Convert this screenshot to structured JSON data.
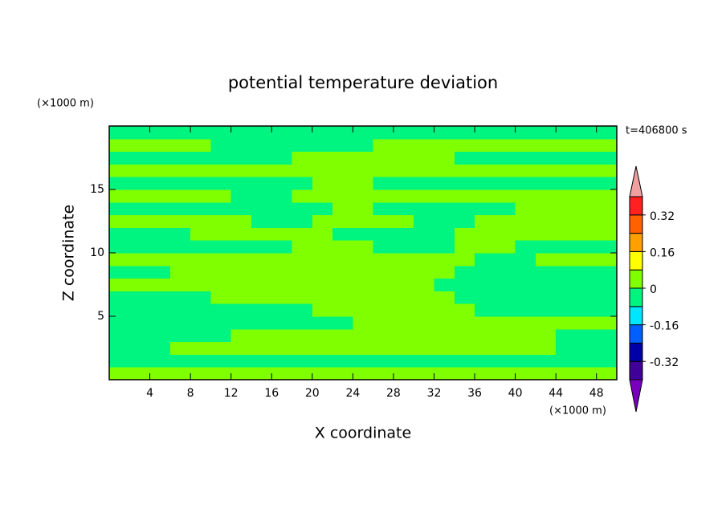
{
  "chart_data": {
    "type": "contourf",
    "title": "potential temperature deviation",
    "xlabel": "X coordinate",
    "ylabel": "Z coordinate",
    "xunit": "(×1000 m)",
    "yunit": "(×1000 m)",
    "annotation": "t=406800 s",
    "xlim": [
      0,
      50
    ],
    "ylim": [
      0,
      20
    ],
    "xticks": [
      4,
      8,
      12,
      16,
      20,
      24,
      28,
      32,
      36,
      40,
      44,
      48
    ],
    "yticks": [
      5,
      10,
      15
    ],
    "x": [
      1,
      3,
      5,
      7,
      9,
      11,
      13,
      15,
      17,
      19,
      21,
      23,
      25,
      27,
      29,
      31,
      33,
      35,
      37,
      39,
      41,
      43,
      45,
      47,
      49
    ],
    "y": [
      0.5,
      1.5,
      2.5,
      3.5,
      4.5,
      5.5,
      6.5,
      7.5,
      8.5,
      9.5,
      10.5,
      11.5,
      12.5,
      13.5,
      14.5,
      15.5,
      16.5,
      17.5,
      18.5,
      19.5
    ],
    "z": [
      [
        0.04,
        0.04,
        0.04,
        0.04,
        0.04,
        0.04,
        0.04,
        0.04,
        0.04,
        0.04,
        0.04,
        0.04,
        0.04,
        0.04,
        0.04,
        0.04,
        0.04,
        0.04,
        0.04,
        0.04,
        0.04,
        0.04,
        0.04,
        0.04,
        0.04
      ],
      [
        -0.04,
        -0.04,
        -0.04,
        -0.04,
        -0.04,
        -0.04,
        -0.04,
        -0.04,
        -0.04,
        -0.04,
        -0.04,
        -0.04,
        -0.04,
        -0.04,
        -0.04,
        -0.04,
        -0.04,
        -0.04,
        -0.04,
        -0.04,
        -0.04,
        -0.04,
        -0.04,
        -0.04,
        -0.04
      ],
      [
        -0.04,
        -0.04,
        -0.04,
        0.04,
        0.04,
        0.04,
        0.04,
        0.04,
        0.04,
        0.04,
        0.04,
        0.04,
        0.04,
        0.04,
        0.04,
        0.04,
        0.04,
        0.04,
        0.04,
        0.04,
        0.04,
        0.04,
        -0.04,
        -0.04,
        -0.04
      ],
      [
        -0.04,
        -0.04,
        -0.04,
        -0.04,
        -0.04,
        -0.04,
        0.04,
        0.04,
        0.04,
        0.04,
        0.04,
        0.04,
        0.04,
        0.04,
        0.04,
        0.04,
        0.04,
        0.04,
        0.04,
        0.04,
        0.04,
        0.04,
        -0.04,
        -0.04,
        -0.04
      ],
      [
        -0.04,
        -0.04,
        -0.04,
        -0.04,
        -0.04,
        -0.04,
        -0.04,
        -0.04,
        -0.04,
        -0.04,
        -0.04,
        -0.04,
        0.04,
        0.04,
        0.04,
        0.04,
        0.04,
        0.04,
        0.04,
        0.04,
        0.04,
        0.04,
        0.04,
        0.04,
        0.04
      ],
      [
        -0.04,
        -0.04,
        -0.04,
        -0.04,
        -0.04,
        -0.04,
        -0.04,
        -0.04,
        -0.04,
        -0.04,
        0.04,
        0.04,
        0.04,
        0.04,
        0.04,
        0.04,
        0.04,
        0.04,
        -0.04,
        -0.04,
        -0.04,
        -0.04,
        -0.04,
        -0.04,
        -0.04
      ],
      [
        -0.04,
        -0.04,
        -0.04,
        -0.04,
        -0.04,
        0.04,
        0.04,
        0.04,
        0.04,
        0.04,
        0.04,
        0.04,
        0.04,
        0.04,
        0.04,
        0.04,
        0.04,
        -0.04,
        -0.04,
        -0.04,
        -0.04,
        -0.04,
        -0.04,
        -0.04,
        -0.04
      ],
      [
        0.04,
        0.04,
        0.04,
        0.04,
        0.04,
        0.04,
        0.04,
        0.04,
        0.04,
        0.04,
        0.04,
        0.04,
        0.04,
        0.04,
        0.04,
        0.04,
        -0.04,
        -0.04,
        -0.04,
        -0.04,
        -0.04,
        -0.04,
        -0.04,
        -0.04,
        -0.04
      ],
      [
        -0.04,
        -0.04,
        -0.04,
        0.04,
        0.04,
        0.04,
        0.04,
        0.04,
        0.04,
        0.04,
        0.04,
        0.04,
        0.04,
        0.04,
        0.04,
        0.04,
        0.04,
        -0.04,
        -0.04,
        -0.04,
        -0.04,
        -0.04,
        -0.04,
        -0.04,
        -0.04
      ],
      [
        0.04,
        0.04,
        0.04,
        0.04,
        0.04,
        0.04,
        0.04,
        0.04,
        0.04,
        0.04,
        0.04,
        0.04,
        0.04,
        0.04,
        0.04,
        0.04,
        0.04,
        0.04,
        -0.04,
        -0.04,
        -0.04,
        0.04,
        0.04,
        0.04,
        0.04
      ],
      [
        -0.04,
        -0.04,
        -0.04,
        -0.04,
        -0.04,
        -0.04,
        -0.04,
        -0.04,
        -0.04,
        0.04,
        0.04,
        0.04,
        0.04,
        -0.04,
        -0.04,
        -0.04,
        -0.04,
        0.04,
        0.04,
        0.04,
        -0.04,
        -0.04,
        -0.04,
        -0.04,
        -0.04
      ],
      [
        -0.04,
        -0.04,
        -0.04,
        -0.04,
        0.04,
        0.04,
        0.04,
        0.04,
        0.04,
        0.04,
        0.04,
        -0.04,
        -0.04,
        -0.04,
        -0.04,
        -0.04,
        -0.04,
        0.04,
        0.04,
        0.04,
        0.04,
        0.04,
        0.04,
        0.04,
        0.04
      ],
      [
        0.04,
        0.04,
        0.04,
        0.04,
        0.04,
        0.04,
        0.04,
        -0.04,
        -0.04,
        -0.04,
        0.04,
        0.04,
        0.04,
        0.04,
        0.04,
        -0.04,
        -0.04,
        -0.04,
        0.04,
        0.04,
        0.04,
        0.04,
        0.04,
        0.04,
        0.04
      ],
      [
        -0.04,
        -0.04,
        -0.04,
        -0.04,
        -0.04,
        -0.04,
        -0.04,
        -0.04,
        -0.04,
        -0.04,
        -0.04,
        0.04,
        0.04,
        -0.04,
        -0.04,
        -0.04,
        -0.04,
        -0.04,
        -0.04,
        -0.04,
        0.04,
        0.04,
        0.04,
        0.04,
        0.04
      ],
      [
        0.04,
        0.04,
        0.04,
        0.04,
        0.04,
        0.04,
        -0.04,
        -0.04,
        -0.04,
        0.04,
        0.04,
        0.04,
        0.04,
        0.04,
        0.04,
        0.04,
        0.04,
        0.04,
        0.04,
        0.04,
        0.04,
        0.04,
        0.04,
        0.04,
        0.04
      ],
      [
        -0.04,
        -0.04,
        -0.04,
        -0.04,
        -0.04,
        -0.04,
        -0.04,
        -0.04,
        -0.04,
        -0.04,
        0.04,
        0.04,
        0.04,
        -0.04,
        -0.04,
        -0.04,
        -0.04,
        -0.04,
        -0.04,
        -0.04,
        -0.04,
        -0.04,
        -0.04,
        -0.04,
        -0.04
      ],
      [
        0.04,
        0.04,
        0.04,
        0.04,
        0.04,
        0.04,
        0.04,
        0.04,
        0.04,
        0.04,
        0.04,
        0.04,
        0.04,
        0.04,
        0.04,
        0.04,
        0.04,
        0.04,
        0.04,
        0.04,
        0.04,
        0.04,
        0.04,
        0.04,
        0.04
      ],
      [
        -0.04,
        -0.04,
        -0.04,
        -0.04,
        -0.04,
        -0.04,
        -0.04,
        -0.04,
        -0.04,
        0.04,
        0.04,
        0.04,
        0.04,
        0.04,
        0.04,
        0.04,
        0.04,
        -0.04,
        -0.04,
        -0.04,
        -0.04,
        -0.04,
        -0.04,
        -0.04,
        -0.04
      ],
      [
        0.04,
        0.04,
        0.04,
        0.04,
        0.04,
        -0.04,
        -0.04,
        -0.04,
        -0.04,
        -0.04,
        -0.04,
        -0.04,
        -0.04,
        0.04,
        0.04,
        0.04,
        0.04,
        0.04,
        0.04,
        0.04,
        0.04,
        0.04,
        0.04,
        0.04,
        0.04
      ],
      [
        -0.04,
        -0.04,
        -0.04,
        -0.04,
        -0.04,
        -0.04,
        -0.04,
        -0.04,
        -0.04,
        -0.04,
        -0.04,
        -0.04,
        -0.04,
        -0.04,
        -0.04,
        -0.04,
        -0.04,
        -0.04,
        -0.04,
        -0.04,
        -0.04,
        -0.04,
        -0.04,
        -0.04,
        -0.04
      ]
    ],
    "colorbar": {
      "levels": [
        -0.4,
        -0.32,
        -0.24,
        -0.16,
        -0.08,
        0,
        0.08,
        0.16,
        0.24,
        0.32,
        0.4
      ],
      "colors": [
        "#7a00c0",
        "#40009a",
        "#0000a8",
        "#0060ff",
        "#00e6ff",
        "#00f580",
        "#80ff00",
        "#ffff00",
        "#ffa000",
        "#ff6000",
        "#ff2020",
        "#f0a0a0"
      ],
      "ticks": [
        -0.32,
        -0.16,
        0,
        0.16,
        0.32
      ]
    }
  }
}
